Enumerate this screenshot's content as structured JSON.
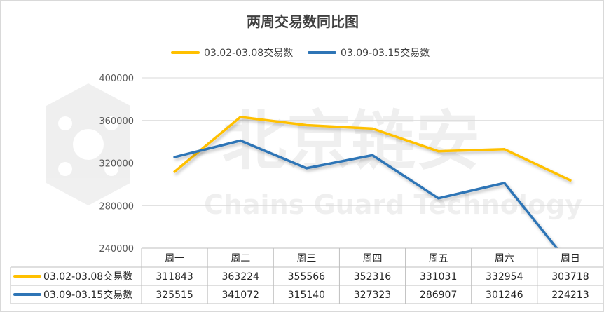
{
  "chart_data": {
    "type": "line",
    "title": "两周交易数同比图",
    "categories": [
      "周一",
      "周二",
      "周三",
      "周四",
      "周五",
      "周六",
      "周日"
    ],
    "series": [
      {
        "name": "03.02-03.08交易数",
        "color": "#FFC000",
        "values": [
          311843,
          363224,
          355566,
          352316,
          331031,
          332954,
          303718
        ]
      },
      {
        "name": "03.09-03.15交易数",
        "color": "#2E75B6",
        "values": [
          325515,
          341072,
          315140,
          327323,
          286907,
          301246,
          224213
        ]
      }
    ],
    "ylim": [
      240000,
      400000
    ],
    "yticks": [
      "400000",
      "360000",
      "320000",
      "280000",
      "240000"
    ],
    "legend": "top",
    "grid": true,
    "data_table": true
  },
  "watermark": {
    "text": "北京链安",
    "subtext": "Chains Guard Technology"
  }
}
